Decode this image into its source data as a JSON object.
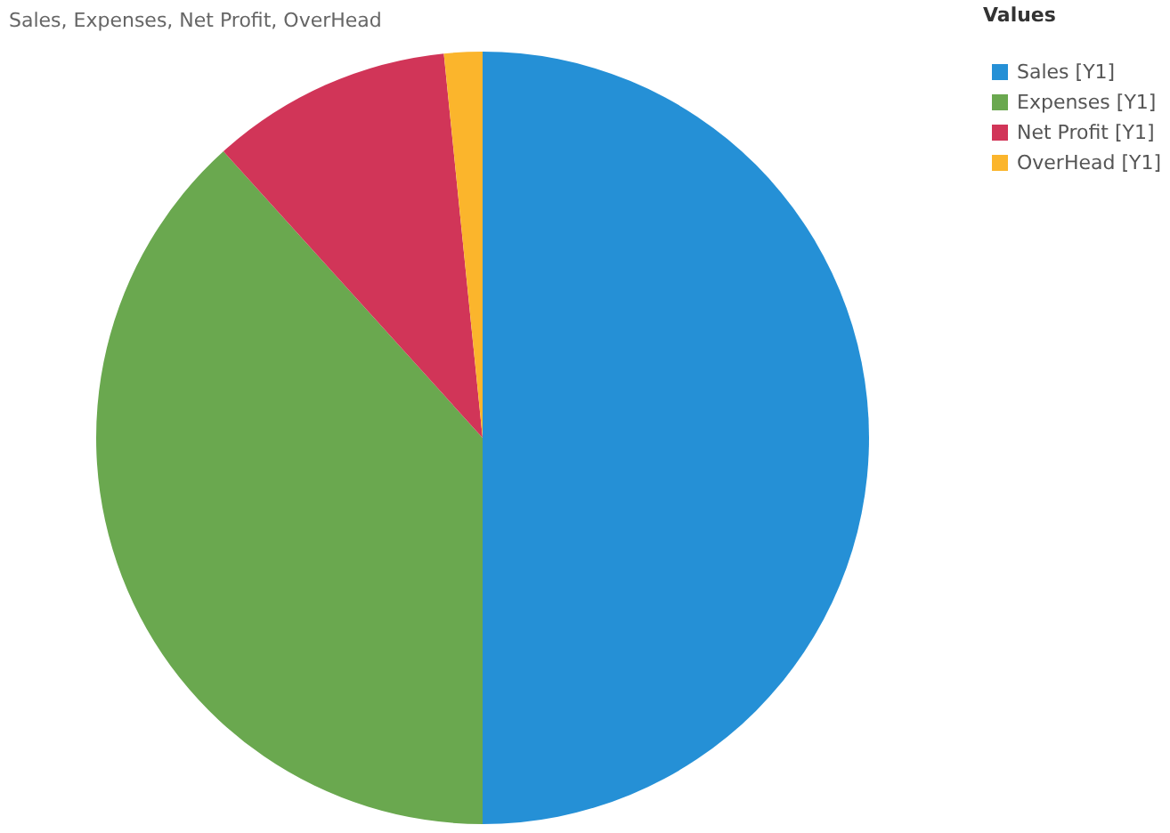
{
  "chart_data": {
    "type": "pie",
    "title": "Sales, Expenses, Net Profit, OverHead",
    "legend_title": "Values",
    "categories": [
      "Sales [Y1]",
      "Expenses [Y1]",
      "Net Profit [Y1]",
      "OverHead [Y1]"
    ],
    "values": [
      50,
      38.3,
      10.1,
      1.6
    ],
    "colors": [
      "#2590d6",
      "#6aa84f",
      "#d13558",
      "#fbb52c"
    ],
    "legend": "right"
  }
}
